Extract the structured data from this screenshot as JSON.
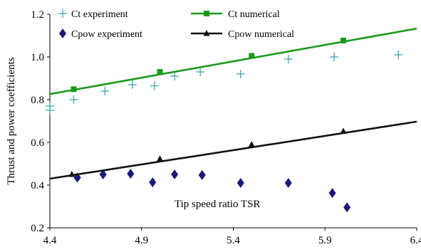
{
  "chart_data": {
    "type": "scatter",
    "title": "",
    "xlabel": "",
    "ylabel": "Thrust and power coefficients",
    "xlim": [
      4.4,
      6.4
    ],
    "ylim": [
      0.2,
      1.2
    ],
    "x_ticks": [
      "4.4",
      "4.9",
      "5.4",
      "5.9",
      "6.4"
    ],
    "y_ticks": [
      "0.2",
      "0.4",
      "0.6",
      "0.8",
      "1.0",
      "1.2"
    ],
    "annotation": "Tip speed ratio TSR",
    "legend_position": "top",
    "series": [
      {
        "name": "Ct experiment",
        "style": "plus-marker",
        "color": "#3aa7b0",
        "x": [
          4.4,
          4.4,
          4.53,
          4.7,
          4.85,
          4.97,
          5.08,
          5.22,
          5.44,
          5.7,
          5.95,
          6.3
        ],
        "y": [
          0.75,
          0.77,
          0.8,
          0.84,
          0.87,
          0.865,
          0.91,
          0.93,
          0.92,
          0.99,
          1.0,
          1.01
        ]
      },
      {
        "name": "Ct numerical",
        "style": "line-square",
        "color": "#1a9a1a",
        "line": [
          [
            4.4,
            0.826
          ],
          [
            6.4,
            1.133
          ]
        ],
        "x": [
          4.53,
          5.0,
          5.5,
          6.0
        ],
        "y": [
          0.849,
          0.93,
          1.005,
          1.077
        ]
      },
      {
        "name": "Cpow experiment",
        "style": "diamond-marker",
        "color": "#1a1a7a",
        "x": [
          4.55,
          4.69,
          4.84,
          4.96,
          5.08,
          5.23,
          5.44,
          5.7,
          5.94,
          6.02
        ],
        "y": [
          0.435,
          0.45,
          0.453,
          0.413,
          0.45,
          0.447,
          0.41,
          0.41,
          0.363,
          0.296
        ]
      },
      {
        "name": "Cpow numerical",
        "style": "line-triangle",
        "color": "#111111",
        "line": [
          [
            4.4,
            0.43
          ],
          [
            6.4,
            0.697
          ]
        ],
        "x": [
          4.52,
          5.0,
          5.5,
          6.0
        ],
        "y": [
          0.45,
          0.523,
          0.59,
          0.652
        ]
      }
    ]
  }
}
